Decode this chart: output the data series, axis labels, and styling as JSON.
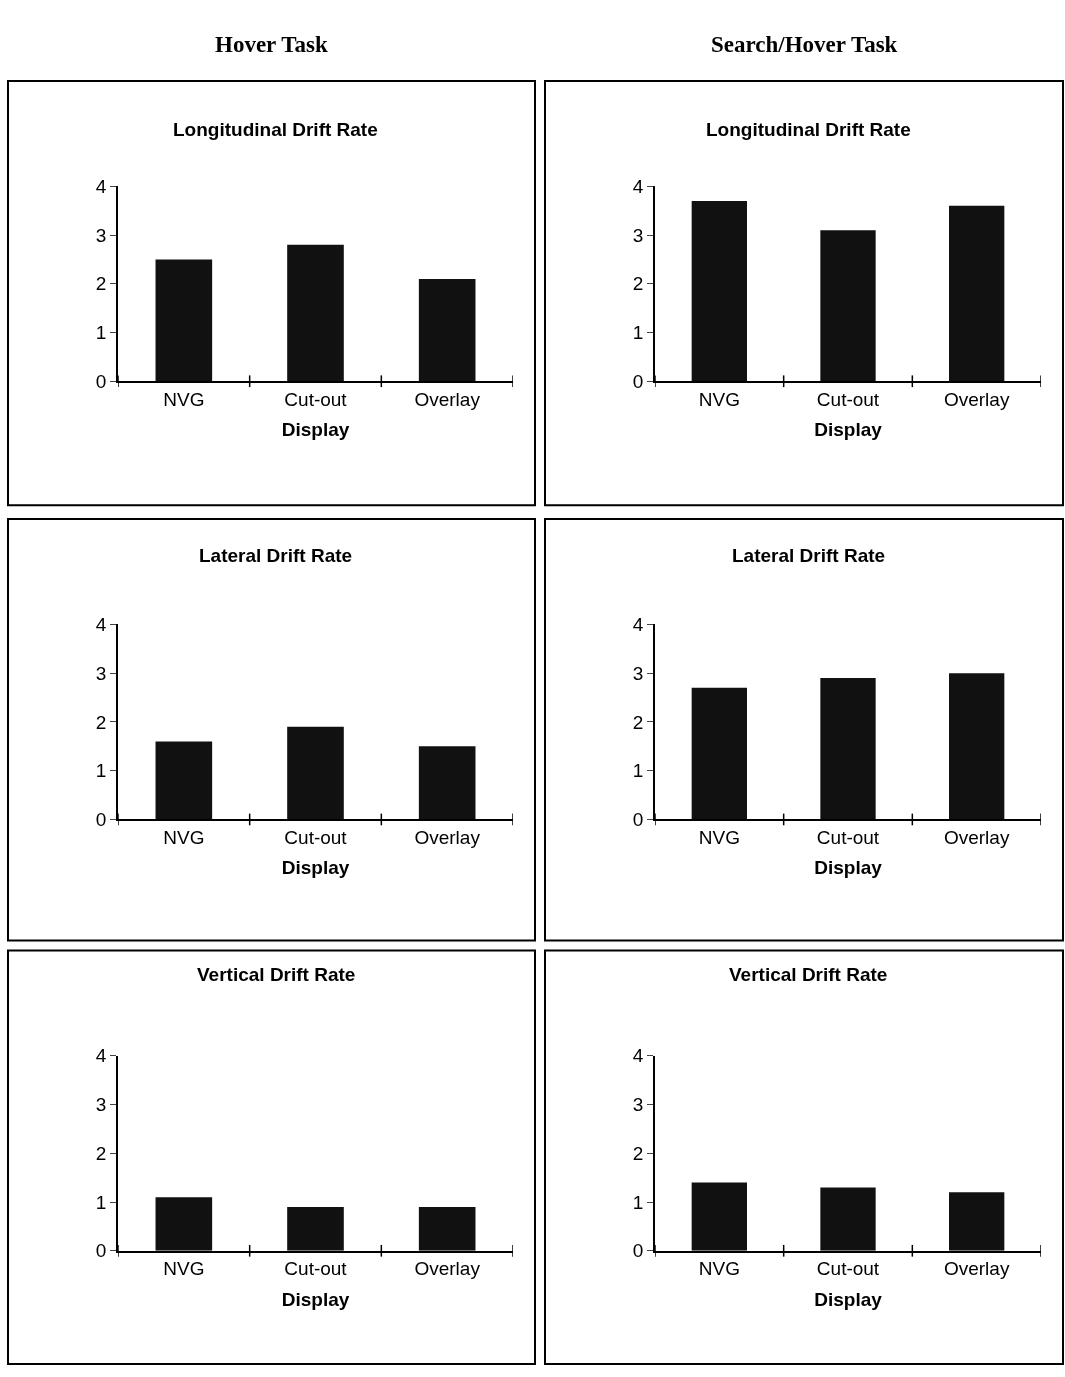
{
  "chart_data": [
    {
      "type": "bar",
      "title": "Longitudinal Drift Rate",
      "xlabel": "Display",
      "annotations": [
        "Hover Task"
      ],
      "categories": [
        "NVG",
        "Cut-out",
        "Overlay"
      ],
      "values": [
        2.5,
        2.8,
        2.1
      ],
      "color": "#111111",
      "ylim": [
        0,
        4
      ],
      "yticks": [
        0,
        1,
        2,
        3,
        4
      ]
    },
    {
      "type": "bar",
      "title": "Longitudinal Drift Rate",
      "xlabel": "Display",
      "annotations": [
        "Search/Hover Task"
      ],
      "categories": [
        "NVG",
        "Cut-out",
        "Overlay"
      ],
      "values": [
        3.7,
        3.1,
        3.6
      ],
      "color": "#111111",
      "ylim": [
        0,
        4
      ],
      "yticks": [
        0,
        1,
        2,
        3,
        4
      ]
    },
    {
      "type": "bar",
      "title": "Lateral Drift Rate",
      "xlabel": "Display",
      "categories": [
        "NVG",
        "Cut-out",
        "Overlay"
      ],
      "values": [
        1.6,
        1.9,
        1.5
      ],
      "color": "#111111",
      "ylim": [
        0,
        4
      ],
      "yticks": [
        0,
        1,
        2,
        3,
        4
      ]
    },
    {
      "type": "bar",
      "title": "Lateral Drift Rate",
      "xlabel": "Display",
      "categories": [
        "NVG",
        "Cut-out",
        "Overlay"
      ],
      "values": [
        2.7,
        2.9,
        3.0
      ],
      "color": "#111111",
      "ylim": [
        0,
        4
      ],
      "yticks": [
        0,
        1,
        2,
        3,
        4
      ]
    },
    {
      "type": "bar",
      "title": "Vertical Drift Rate",
      "xlabel": "Display",
      "categories": [
        "NVG",
        "Cut-out",
        "Overlay"
      ],
      "values": [
        1.1,
        0.9,
        0.9
      ],
      "color": "#111111",
      "ylim": [
        0,
        4
      ],
      "yticks": [
        0,
        1,
        2,
        3,
        4
      ]
    },
    {
      "type": "bar",
      "title": "Vertical Drift Rate",
      "xlabel": "Display",
      "categories": [
        "NVG",
        "Cut-out",
        "Overlay"
      ],
      "values": [
        1.4,
        1.3,
        1.2
      ],
      "color": "#111111",
      "ylim": [
        0,
        4
      ],
      "yticks": [
        0,
        1,
        2,
        3,
        4
      ]
    }
  ]
}
